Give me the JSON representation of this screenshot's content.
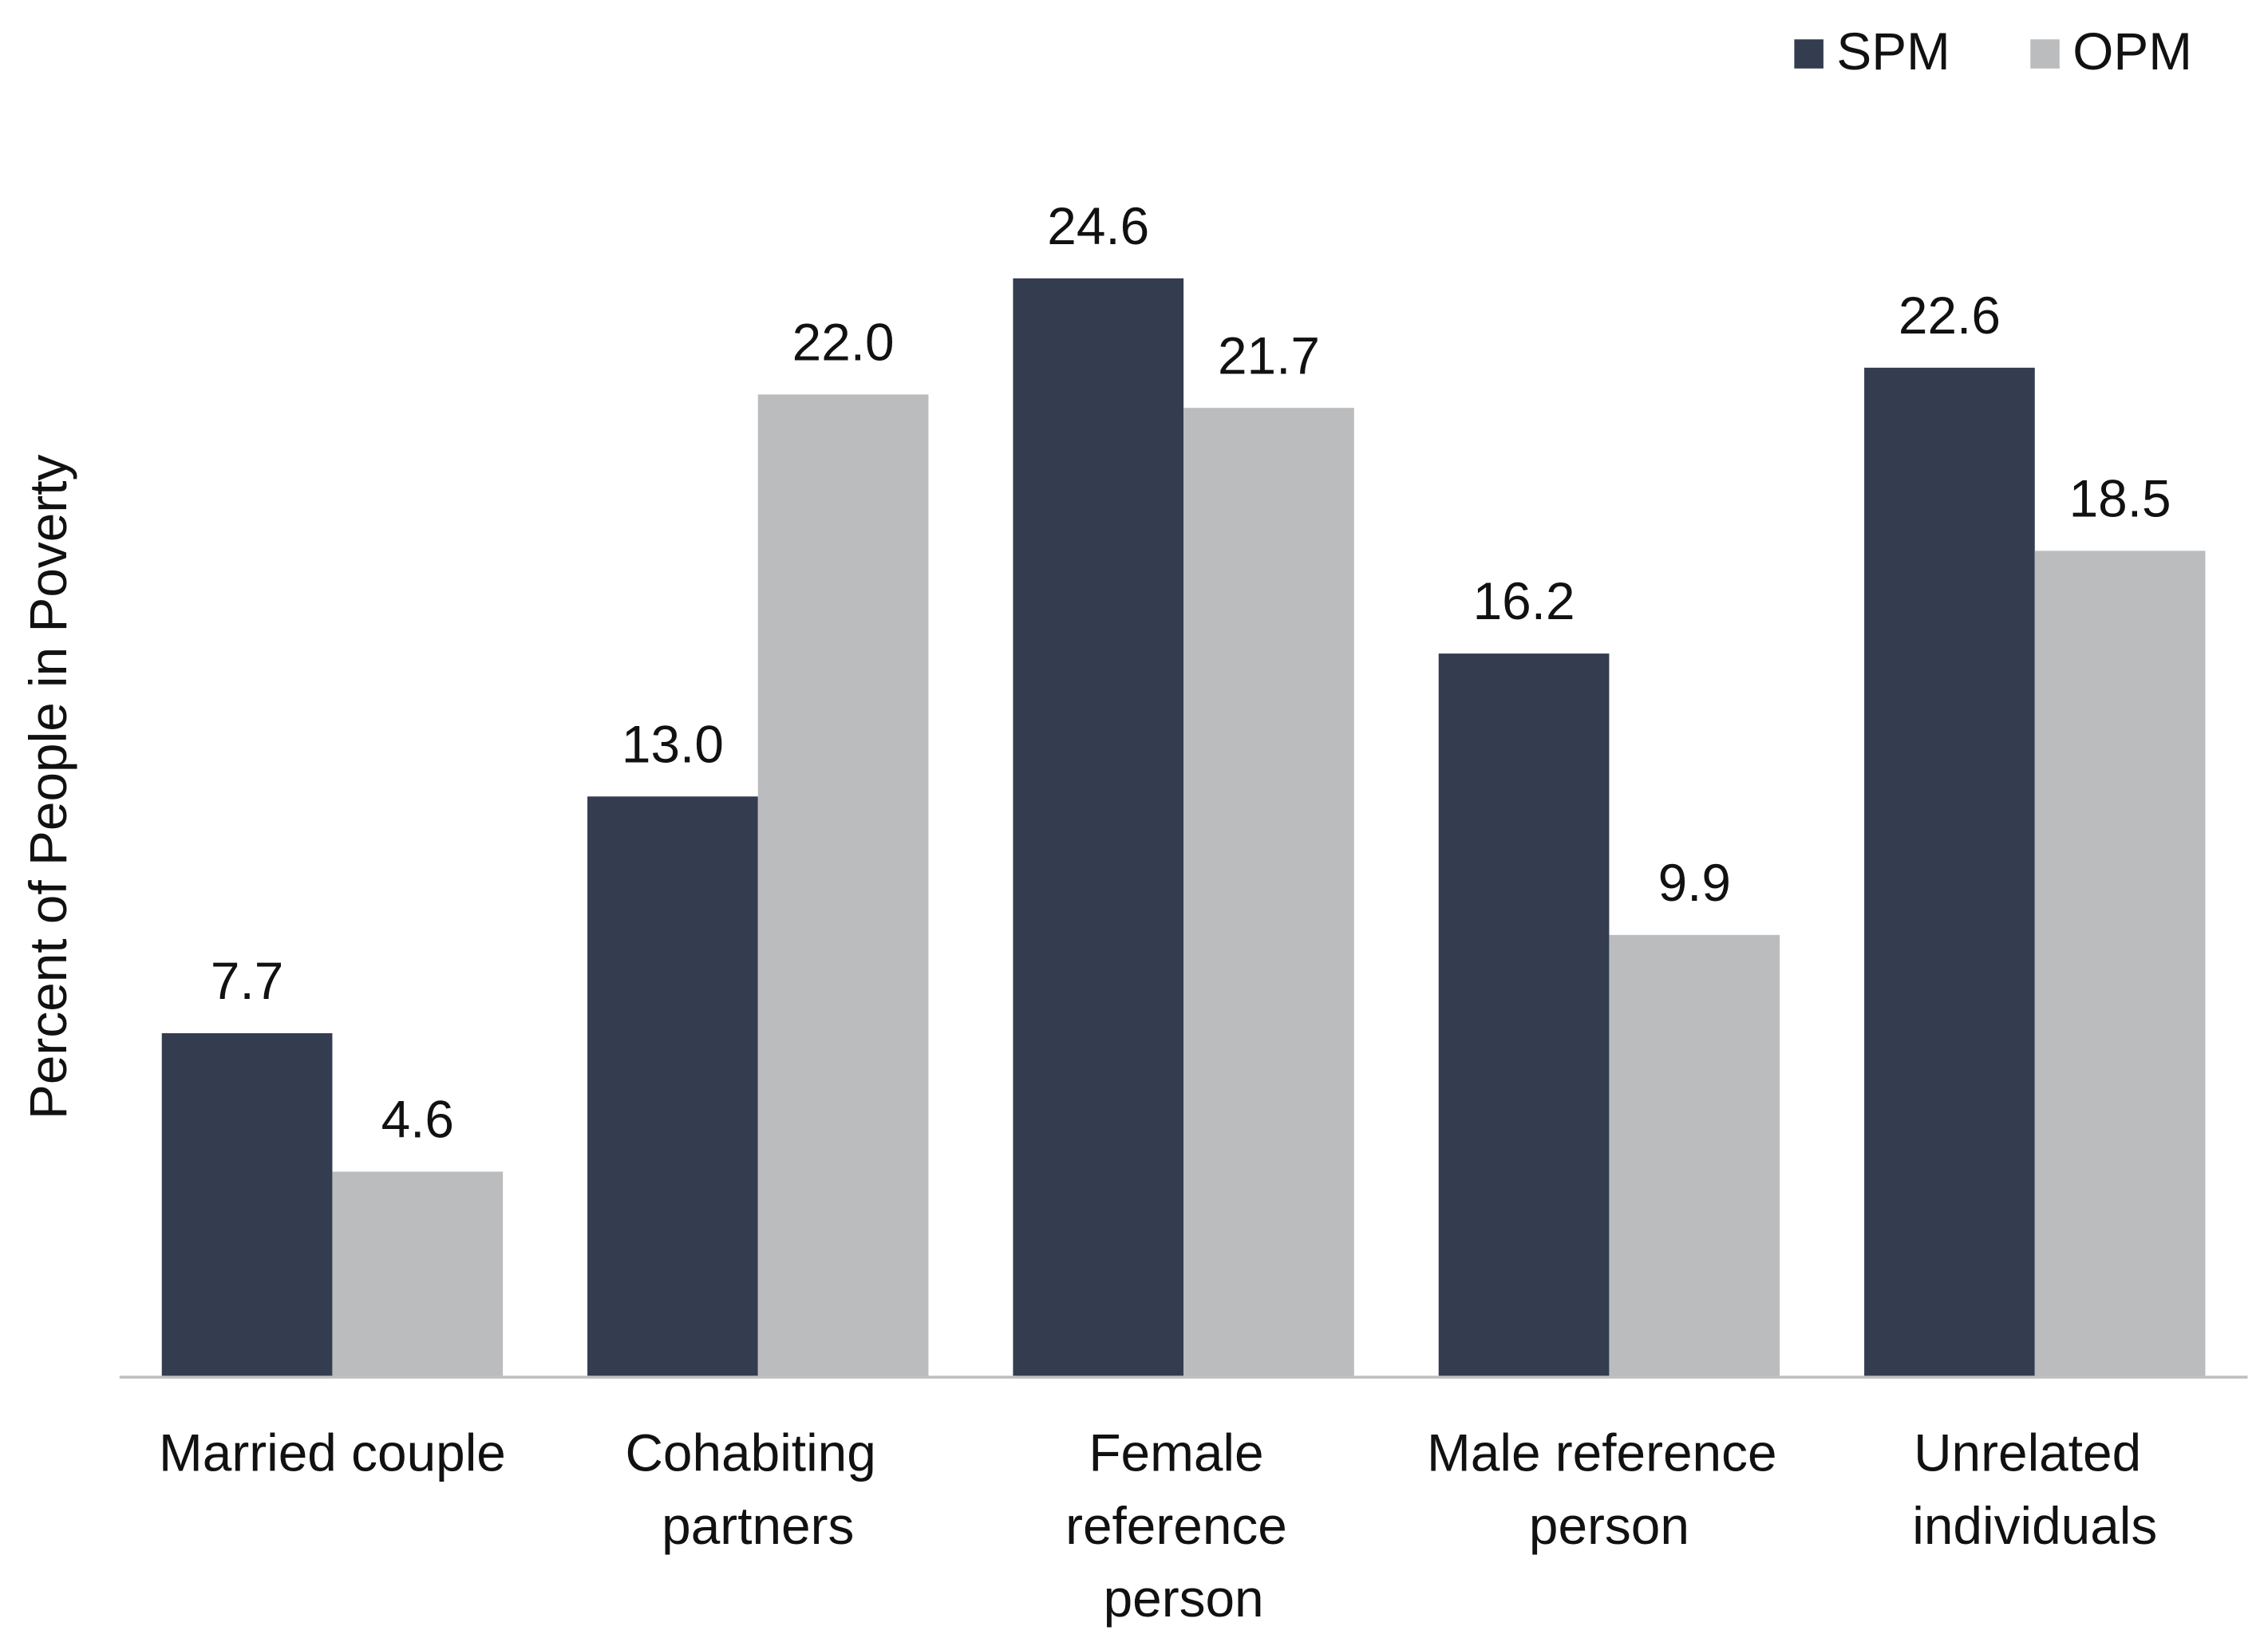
{
  "chart_data": {
    "type": "bar",
    "y_label": "Percent of People in Poverty",
    "categories": [
      "Married couple",
      "Cohabiting partners",
      "Female reference person",
      "Male reference person",
      "Unrelated individuals"
    ],
    "series": [
      {
        "name": "SPM",
        "color": "#333d4f",
        "values": [
          7.7,
          13.0,
          24.6,
          16.2,
          22.6
        ],
        "value_labels": [
          "7.7",
          "13.0",
          "24.6",
          "16.2",
          "22.6"
        ]
      },
      {
        "name": "OPM",
        "color": "#bbbcbe",
        "values": [
          4.6,
          22.0,
          21.7,
          9.9,
          18.5
        ],
        "value_labels": [
          "4.6",
          "22.0",
          "21.7",
          "9.9",
          "18.5"
        ]
      }
    ],
    "ylim": [
      0,
      30
    ],
    "legend": "top-right",
    "grid": false
  }
}
